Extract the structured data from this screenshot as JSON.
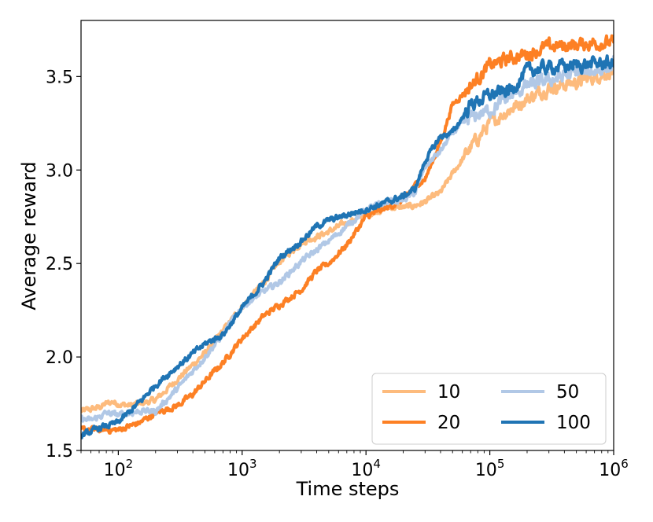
{
  "chart_data": {
    "type": "line",
    "xscale": "log",
    "xlabel": "Time steps",
    "ylabel": "Average reward",
    "xlim": [
      50,
      1000000
    ],
    "ylim": [
      1.5,
      3.8
    ],
    "xticks": [
      {
        "value": 100,
        "base": "10",
        "exp": "2"
      },
      {
        "value": 1000,
        "base": "10",
        "exp": "3"
      },
      {
        "value": 10000,
        "base": "10",
        "exp": "4"
      },
      {
        "value": 100000,
        "base": "10",
        "exp": "5"
      },
      {
        "value": 1000000,
        "base": "10",
        "exp": "6"
      }
    ],
    "yticks": [
      {
        "value": 1.5,
        "label": "1.5"
      },
      {
        "value": 2.0,
        "label": "2.0"
      },
      {
        "value": 2.5,
        "label": "2.5"
      },
      {
        "value": 3.0,
        "label": "3.0"
      },
      {
        "value": 3.5,
        "label": "3.5"
      }
    ],
    "legend": {
      "location": "lower right",
      "columns": 2
    },
    "series": [
      {
        "name": "10",
        "color": "#fdbb7d",
        "noise": 0.012,
        "points": [
          [
            50,
            1.71
          ],
          [
            60,
            1.72
          ],
          [
            70,
            1.73
          ],
          [
            80,
            1.75
          ],
          [
            90,
            1.76
          ],
          [
            100,
            1.75
          ],
          [
            120,
            1.74
          ],
          [
            150,
            1.75
          ],
          [
            200,
            1.77
          ],
          [
            300,
            1.88
          ],
          [
            500,
            2.02
          ],
          [
            700,
            2.14
          ],
          [
            1000,
            2.27
          ],
          [
            1500,
            2.4
          ],
          [
            2000,
            2.51
          ],
          [
            3000,
            2.61
          ],
          [
            5000,
            2.67
          ],
          [
            7000,
            2.72
          ],
          [
            10000,
            2.76
          ],
          [
            15000,
            2.8
          ],
          [
            20000,
            2.8
          ],
          [
            25000,
            2.81
          ],
          [
            30000,
            2.83
          ],
          [
            40000,
            2.88
          ],
          [
            50000,
            2.98
          ],
          [
            70000,
            3.12
          ],
          [
            100000,
            3.25
          ],
          [
            150000,
            3.33
          ],
          [
            200000,
            3.38
          ],
          [
            300000,
            3.44
          ],
          [
            500000,
            3.47
          ],
          [
            700000,
            3.5
          ],
          [
            1000000,
            3.53
          ]
        ]
      },
      {
        "name": "20",
        "color": "#fd8024",
        "noise": 0.012,
        "points": [
          [
            50,
            1.61
          ],
          [
            70,
            1.61
          ],
          [
            100,
            1.61
          ],
          [
            150,
            1.65
          ],
          [
            200,
            1.7
          ],
          [
            300,
            1.74
          ],
          [
            400,
            1.8
          ],
          [
            500,
            1.87
          ],
          [
            700,
            1.97
          ],
          [
            1000,
            2.1
          ],
          [
            1500,
            2.22
          ],
          [
            2000,
            2.28
          ],
          [
            3000,
            2.36
          ],
          [
            4000,
            2.46
          ],
          [
            5000,
            2.5
          ],
          [
            7000,
            2.6
          ],
          [
            10000,
            2.75
          ],
          [
            15000,
            2.8
          ],
          [
            20000,
            2.84
          ],
          [
            25000,
            2.92
          ],
          [
            30000,
            2.95
          ],
          [
            40000,
            3.15
          ],
          [
            50000,
            3.35
          ],
          [
            70000,
            3.45
          ],
          [
            100000,
            3.56
          ],
          [
            150000,
            3.6
          ],
          [
            200000,
            3.62
          ],
          [
            300000,
            3.66
          ],
          [
            500000,
            3.67
          ],
          [
            700000,
            3.68
          ],
          [
            1000000,
            3.68
          ]
        ]
      },
      {
        "name": "50",
        "color": "#b1c8e6",
        "noise": 0.012,
        "points": [
          [
            50,
            1.67
          ],
          [
            60,
            1.66
          ],
          [
            70,
            1.68
          ],
          [
            80,
            1.7
          ],
          [
            100,
            1.69
          ],
          [
            150,
            1.71
          ],
          [
            200,
            1.71
          ],
          [
            300,
            1.83
          ],
          [
            500,
            2.0
          ],
          [
            700,
            2.12
          ],
          [
            1000,
            2.27
          ],
          [
            1500,
            2.35
          ],
          [
            2000,
            2.4
          ],
          [
            3000,
            2.51
          ],
          [
            5000,
            2.62
          ],
          [
            7000,
            2.7
          ],
          [
            10000,
            2.79
          ],
          [
            15000,
            2.83
          ],
          [
            20000,
            2.84
          ],
          [
            25000,
            2.88
          ],
          [
            30000,
            3.02
          ],
          [
            40000,
            3.1
          ],
          [
            50000,
            3.2
          ],
          [
            70000,
            3.28
          ],
          [
            100000,
            3.32
          ],
          [
            150000,
            3.4
          ],
          [
            200000,
            3.45
          ],
          [
            300000,
            3.48
          ],
          [
            500000,
            3.52
          ],
          [
            700000,
            3.53
          ],
          [
            1000000,
            3.56
          ]
        ]
      },
      {
        "name": "100",
        "color": "#1f74b4",
        "noise": 0.012,
        "points": [
          [
            50,
            1.58
          ],
          [
            60,
            1.6
          ],
          [
            70,
            1.62
          ],
          [
            80,
            1.63
          ],
          [
            100,
            1.65
          ],
          [
            150,
            1.76
          ],
          [
            200,
            1.85
          ],
          [
            300,
            1.95
          ],
          [
            500,
            2.07
          ],
          [
            700,
            2.12
          ],
          [
            1000,
            2.26
          ],
          [
            1500,
            2.4
          ],
          [
            2000,
            2.53
          ],
          [
            3000,
            2.62
          ],
          [
            4000,
            2.7
          ],
          [
            5000,
            2.73
          ],
          [
            7000,
            2.76
          ],
          [
            10000,
            2.79
          ],
          [
            15000,
            2.83
          ],
          [
            20000,
            2.86
          ],
          [
            25000,
            2.9
          ],
          [
            30000,
            3.05
          ],
          [
            40000,
            3.18
          ],
          [
            50000,
            3.2
          ],
          [
            70000,
            3.35
          ],
          [
            100000,
            3.4
          ],
          [
            150000,
            3.43
          ],
          [
            200000,
            3.53
          ],
          [
            300000,
            3.55
          ],
          [
            500000,
            3.56
          ],
          [
            700000,
            3.57
          ],
          [
            1000000,
            3.57
          ]
        ]
      }
    ]
  }
}
